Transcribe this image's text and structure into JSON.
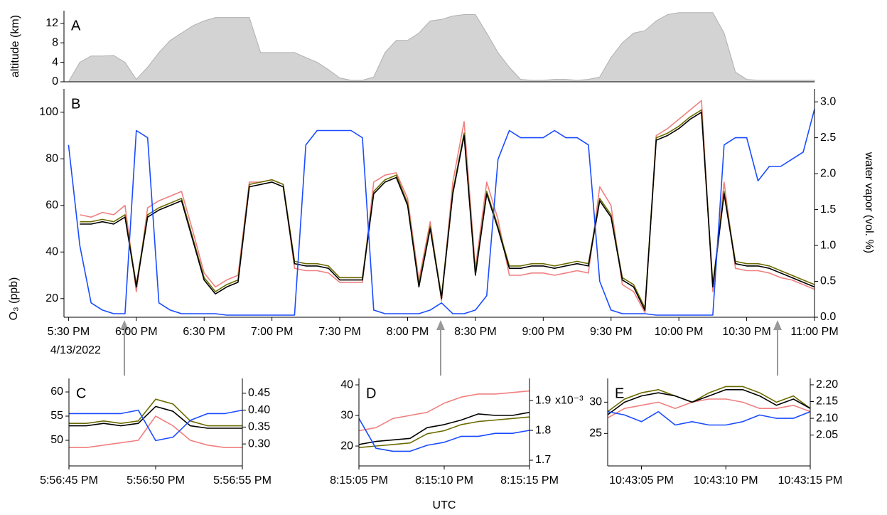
{
  "chart_data": [
    {
      "type": "area",
      "label": "A",
      "ylabel": "altitude (km)",
      "color": "#d3d3d3",
      "xlim": [
        "5:28 PM",
        "11:00 PM"
      ],
      "ylim": [
        0,
        14.6
      ],
      "yticks": [
        0,
        4,
        8,
        12
      ],
      "x": [
        "5:30 PM",
        "5:35 PM",
        "5:40 PM",
        "5:45 PM",
        "5:50 PM",
        "5:55 PM",
        "6:00 PM",
        "6:05 PM",
        "6:10 PM",
        "6:15 PM",
        "6:20 PM",
        "6:25 PM",
        "6:30 PM",
        "6:35 PM",
        "6:40 PM",
        "6:45 PM",
        "6:50 PM",
        "6:55 PM",
        "7:00 PM",
        "7:05 PM",
        "7:10 PM",
        "7:15 PM",
        "7:20 PM",
        "7:25 PM",
        "7:30 PM",
        "7:35 PM",
        "7:40 PM",
        "7:45 PM",
        "7:50 PM",
        "7:55 PM",
        "8:00 PM",
        "8:05 PM",
        "8:10 PM",
        "8:15 PM",
        "8:20 PM",
        "8:25 PM",
        "8:30 PM",
        "8:35 PM",
        "8:40 PM",
        "8:45 PM",
        "8:50 PM",
        "8:55 PM",
        "9:00 PM",
        "9:05 PM",
        "9:10 PM",
        "9:15 PM",
        "9:20 PM",
        "9:25 PM",
        "9:30 PM",
        "9:35 PM",
        "9:40 PM",
        "9:45 PM",
        "9:50 PM",
        "9:55 PM",
        "10:00 PM",
        "10:05 PM",
        "10:10 PM",
        "10:15 PM",
        "10:20 PM",
        "10:25 PM",
        "10:30 PM",
        "10:35 PM",
        "10:40 PM",
        "10:45 PM",
        "10:50 PM",
        "10:55 PM",
        "11:00 PM"
      ],
      "values": [
        0,
        4,
        5.3,
        5.3,
        5.4,
        4,
        0.5,
        3,
        6,
        8.5,
        10,
        11.5,
        12.5,
        13.2,
        13.2,
        13.2,
        13.2,
        6,
        6,
        6,
        6,
        5,
        4,
        2.5,
        0.8,
        0.3,
        0.3,
        1,
        6,
        8.5,
        8.5,
        10,
        12.5,
        12.8,
        13.5,
        13.8,
        13.8,
        10,
        6,
        3,
        0.5,
        0.3,
        0.3,
        0.5,
        0.5,
        0.3,
        0.5,
        1,
        5,
        8,
        10,
        10.5,
        12.5,
        13.8,
        14.2,
        14.2,
        14.2,
        14.2,
        10,
        2,
        0.5,
        0.3,
        0.3,
        0.3,
        0.3,
        0.3,
        0.3
      ]
    },
    {
      "type": "line",
      "label": "B",
      "ylabel": "O₃ (ppb)",
      "y2label": "water vapor (vol. %)",
      "date_label": "4/13/2022",
      "xlim": [
        "5:28 PM",
        "11:00 PM"
      ],
      "xticks": [
        "5:30 PM",
        "6:00 PM",
        "6:30 PM",
        "7:00 PM",
        "7:30 PM",
        "8:00 PM",
        "8:30 PM",
        "9:00 PM",
        "9:30 PM",
        "10:00 PM",
        "10:30 PM",
        "11:00 PM"
      ],
      "ylim": [
        12,
        110
      ],
      "yticks": [
        20,
        40,
        60,
        80,
        100
      ],
      "y2lim": [
        0,
        3.18
      ],
      "y2ticks": [
        {
          "value": 0,
          "label": "0.0"
        },
        0.5,
        {
          "value": 1,
          "label": "1.0"
        },
        1.5,
        {
          "value": 2,
          "label": "2.0"
        },
        2.5,
        {
          "value": 3,
          "label": "3.0"
        }
      ],
      "x": [
        "5:30 PM",
        "5:35 PM",
        "5:40 PM",
        "5:45 PM",
        "5:50 PM",
        "5:55 PM",
        "6:00 PM",
        "6:05 PM",
        "6:10 PM",
        "6:15 PM",
        "6:20 PM",
        "6:25 PM",
        "6:30 PM",
        "6:35 PM",
        "6:40 PM",
        "6:45 PM",
        "6:50 PM",
        "6:55 PM",
        "7:00 PM",
        "7:05 PM",
        "7:10 PM",
        "7:15 PM",
        "7:20 PM",
        "7:25 PM",
        "7:30 PM",
        "7:35 PM",
        "7:40 PM",
        "7:45 PM",
        "7:50 PM",
        "7:55 PM",
        "8:00 PM",
        "8:05 PM",
        "8:10 PM",
        "8:15 PM",
        "8:20 PM",
        "8:25 PM",
        "8:30 PM",
        "8:35 PM",
        "8:40 PM",
        "8:45 PM",
        "8:50 PM",
        "8:55 PM",
        "9:00 PM",
        "9:05 PM",
        "9:10 PM",
        "9:15 PM",
        "9:20 PM",
        "9:25 PM",
        "9:30 PM",
        "9:35 PM",
        "9:40 PM",
        "9:45 PM",
        "9:50 PM",
        "9:55 PM",
        "10:00 PM",
        "10:05 PM",
        "10:10 PM",
        "10:15 PM",
        "10:20 PM",
        "10:25 PM",
        "10:30 PM",
        "10:35 PM",
        "10:40 PM",
        "10:45 PM",
        "10:50 PM",
        "10:55 PM",
        "11:00 PM"
      ],
      "series": [
        {
          "color": "#f08080",
          "values": [
            null,
            56,
            55,
            57,
            56,
            60,
            23,
            59,
            62,
            64,
            66,
            49,
            31,
            25,
            28,
            30,
            70,
            70,
            71,
            69,
            33,
            32,
            32,
            31,
            27,
            27,
            27,
            70,
            73,
            74,
            63,
            28,
            53,
            19,
            70,
            96,
            33,
            70,
            54,
            30,
            30,
            31,
            31,
            30,
            31,
            32,
            31,
            68,
            60,
            26,
            23,
            14,
            90,
            93,
            97,
            101,
            105,
            23,
            70,
            33,
            32,
            32,
            31,
            29,
            28,
            26,
            24
          ]
        },
        {
          "color": "#6b6b00",
          "values": [
            null,
            53,
            53,
            54,
            53,
            56,
            26,
            56,
            59,
            61,
            63,
            46,
            29,
            23,
            26,
            28,
            69,
            70,
            71,
            69,
            36,
            35,
            35,
            34,
            29,
            29,
            29,
            66,
            71,
            73,
            61,
            26,
            51,
            21,
            66,
            91,
            31,
            66,
            51,
            34,
            34,
            35,
            35,
            34,
            35,
            36,
            35,
            63,
            56,
            29,
            26,
            16,
            89,
            91,
            94,
            98,
            101,
            26,
            66,
            36,
            35,
            35,
            34,
            32,
            30,
            28,
            26
          ]
        },
        {
          "color": "#000000",
          "values": [
            null,
            52,
            52,
            53,
            52,
            55,
            25,
            55,
            58,
            60,
            62,
            45,
            28,
            22,
            25,
            27,
            68,
            69,
            70,
            68,
            35,
            34,
            34,
            33,
            28,
            28,
            28,
            65,
            70,
            72,
            60,
            25,
            50,
            20,
            65,
            90,
            30,
            65,
            50,
            33,
            33,
            34,
            34,
            33,
            34,
            35,
            34,
            62,
            55,
            28,
            25,
            15,
            88,
            90,
            93,
            97,
            100,
            25,
            65,
            35,
            34,
            34,
            33,
            31,
            29,
            27,
            25
          ]
        },
        {
          "color": "#1a4cff",
          "axis": "y2",
          "values": [
            2.4,
            1.0,
            0.2,
            0.1,
            0.05,
            0.05,
            2.6,
            2.5,
            0.2,
            0.1,
            0.05,
            0.05,
            0.05,
            0.05,
            0.03,
            0.03,
            0.03,
            0.03,
            0.03,
            0.03,
            0.03,
            2.4,
            2.6,
            2.6,
            2.6,
            2.6,
            2.5,
            0.1,
            0.05,
            0.05,
            0.05,
            0.05,
            0.1,
            0.2,
            0.05,
            0.05,
            0.1,
            0.3,
            2.2,
            2.6,
            2.5,
            2.5,
            2.5,
            2.6,
            2.5,
            2.5,
            2.4,
            0.5,
            0.1,
            0.05,
            0.05,
            0.05,
            0.03,
            0.03,
            0.03,
            0.03,
            0.03,
            0.03,
            2.4,
            2.5,
            2.5,
            1.9,
            2.1,
            2.1,
            2.2,
            2.3,
            2.9
          ]
        }
      ]
    },
    {
      "type": "line",
      "label": "C",
      "xlim": [
        "5:56:45 PM",
        "5:56:55 PM"
      ],
      "xticks": [
        "5:56:45 PM",
        "5:56:50 PM",
        "5:56:55 PM"
      ],
      "ylim": [
        44.7,
        62.8
      ],
      "yticks": [
        50,
        55,
        60
      ],
      "y2lim": [
        0.235,
        0.494
      ],
      "y2ticks": [
        {
          "value": 0.3,
          "label": "0.30"
        },
        0.35,
        {
          "value": 0.4,
          "label": "0.40"
        },
        0.45
      ],
      "x": [
        "5:56:45 PM",
        "5:56:46 PM",
        "5:56:47 PM",
        "5:56:48 PM",
        "5:56:49 PM",
        "5:56:50 PM",
        "5:56:51 PM",
        "5:56:52 PM",
        "5:56:53 PM",
        "5:56:54 PM",
        "5:56:55 PM"
      ],
      "series": [
        {
          "color": "#f08080",
          "values": [
            48.5,
            48.5,
            49,
            49.5,
            50,
            55,
            53,
            50,
            49,
            48.5,
            48.5
          ]
        },
        {
          "color": "#6b6b00",
          "values": [
            53.5,
            53.5,
            54,
            53.5,
            54,
            58.5,
            57.5,
            54,
            53,
            53,
            53
          ]
        },
        {
          "color": "#000000",
          "values": [
            53,
            53,
            53.5,
            53,
            53.5,
            57,
            56,
            53,
            52.5,
            52.5,
            52.5
          ]
        },
        {
          "color": "#1a4cff",
          "axis": "y2",
          "values": [
            0.39,
            0.39,
            0.39,
            0.39,
            0.4,
            0.31,
            0.32,
            0.37,
            0.39,
            0.39,
            0.4
          ]
        }
      ]
    },
    {
      "type": "line",
      "label": "D",
      "xlabel": "UTC",
      "y2_exponent": "x10⁻³",
      "xlim": [
        "8:15:05 PM",
        "8:15:15 PM"
      ],
      "xticks": [
        "8:15:05 PM",
        "8:15:10 PM",
        "8:15:15 PM"
      ],
      "ylim": [
        13.5,
        42.1
      ],
      "yticks": [
        20,
        30,
        40
      ],
      "y2lim": [
        1.681,
        1.974
      ],
      "y2ticks": [
        1.7,
        1.8,
        1.9
      ],
      "x": [
        "8:15:05 PM",
        "8:15:06 PM",
        "8:15:07 PM",
        "8:15:08 PM",
        "8:15:09 PM",
        "8:15:10 PM",
        "8:15:11 PM",
        "8:15:12 PM",
        "8:15:13 PM",
        "8:15:14 PM",
        "8:15:15 PM"
      ],
      "series": [
        {
          "color": "#f08080",
          "values": [
            25,
            26,
            29,
            30,
            31,
            34,
            36,
            37,
            37,
            37.5,
            38
          ]
        },
        {
          "color": "#6b6b00",
          "values": [
            19.5,
            20,
            20.5,
            21,
            24,
            25,
            27,
            28,
            28.5,
            29,
            29.5
          ]
        },
        {
          "color": "#000000",
          "values": [
            20.5,
            21.5,
            22,
            22.5,
            26,
            27,
            28.5,
            30.5,
            30,
            30,
            31
          ]
        },
        {
          "color": "#1a4cff",
          "axis": "y2",
          "values": [
            1.84,
            1.74,
            1.73,
            1.73,
            1.75,
            1.76,
            1.78,
            1.78,
            1.79,
            1.79,
            1.8
          ]
        }
      ]
    },
    {
      "type": "line",
      "label": "E",
      "xlim": [
        "10:43:03 PM",
        "10:43:15 PM"
      ],
      "xticks": [
        "10:43:05 PM",
        "10:43:10 PM",
        "10:43:15 PM"
      ],
      "ylim": [
        19.8,
        33.8
      ],
      "yticks": [
        25,
        30
      ],
      "y2lim": [
        1.958,
        2.219
      ],
      "y2ticks": [
        2.05,
        {
          "value": 2.1,
          "label": "2.10"
        },
        2.15,
        {
          "value": 2.2,
          "label": "2.20"
        }
      ],
      "x": [
        "10:43:03 PM",
        "10:43:04 PM",
        "10:43:05 PM",
        "10:43:06 PM",
        "10:43:07 PM",
        "10:43:08 PM",
        "10:43:09 PM",
        "10:43:10 PM",
        "10:43:11 PM",
        "10:43:12 PM",
        "10:43:13 PM",
        "10:43:14 PM",
        "10:43:15 PM"
      ],
      "series": [
        {
          "color": "#f08080",
          "values": [
            27.5,
            29,
            29.5,
            30,
            29,
            30,
            30.5,
            30.5,
            30,
            29,
            29,
            29.5,
            28.5
          ]
        },
        {
          "color": "#6b6b00",
          "values": [
            28.5,
            30.5,
            31.5,
            32,
            31,
            30,
            31.5,
            32.5,
            32.5,
            31.5,
            30,
            31,
            29
          ]
        },
        {
          "color": "#000000",
          "values": [
            28,
            30,
            31,
            31.5,
            31,
            30,
            31,
            32,
            32,
            31,
            29.5,
            30.5,
            29
          ]
        },
        {
          "color": "#1a4cff",
          "axis": "y2",
          "values": [
            2.12,
            2.11,
            2.09,
            2.12,
            2.08,
            2.09,
            2.08,
            2.08,
            2.09,
            2.11,
            2.1,
            2.1,
            2.12
          ]
        }
      ]
    }
  ]
}
